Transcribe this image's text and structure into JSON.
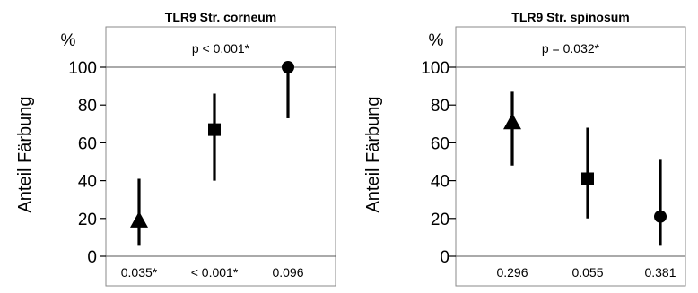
{
  "chart_data": [
    {
      "type": "scatter",
      "title": "TLR9 Str. corneum",
      "ylabel": "Anteil Färbung",
      "yunit": "%",
      "ylim": [
        0,
        100
      ],
      "yticks": [
        0,
        20,
        40,
        60,
        80,
        100
      ],
      "top_annotation": "p < 0.001*",
      "bottom_labels": [
        "0.035*",
        "< 0.001*",
        "0.096"
      ],
      "points": [
        {
          "marker": "triangle",
          "y": 19,
          "low": 6,
          "high": 41
        },
        {
          "marker": "square",
          "y": 67,
          "low": 40,
          "high": 86
        },
        {
          "marker": "circle",
          "y": 100,
          "low": 73,
          "high": 100
        }
      ]
    },
    {
      "type": "scatter",
      "title": "TLR9 Str. spinosum",
      "ylabel": "Anteil Färbung",
      "yunit": "%",
      "ylim": [
        0,
        100
      ],
      "yticks": [
        0,
        20,
        40,
        60,
        80,
        100
      ],
      "top_annotation": "p = 0.032*",
      "bottom_labels": [
        "0.296",
        "0.055",
        "0.381"
      ],
      "points": [
        {
          "marker": "triangle",
          "y": 71,
          "low": 48,
          "high": 87
        },
        {
          "marker": "square",
          "y": 41,
          "low": 20,
          "high": 68
        },
        {
          "marker": "circle",
          "y": 21,
          "low": 6,
          "high": 51
        }
      ]
    }
  ]
}
